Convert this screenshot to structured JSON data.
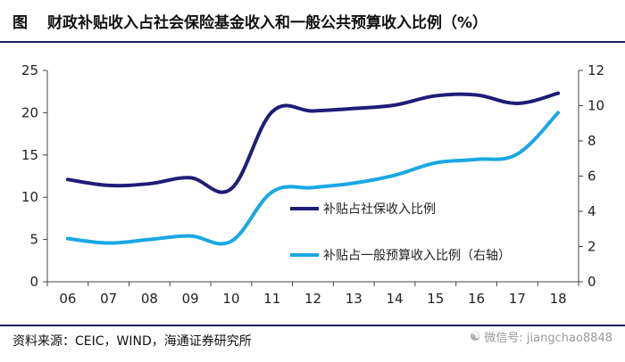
{
  "header": {
    "figure_label": "图",
    "title": "财政补贴收入占社会保险基金收入和一般公共预算收入比例（%）"
  },
  "footer": {
    "source": "资料来源：CEIC，WIND，海通证券研究所",
    "watermark": "微信号: jiangchao8848",
    "watermark_icon": "wechat-icon"
  },
  "chart_data": {
    "type": "line",
    "title": "财政补贴收入占社会保险基金收入和一般公共预算收入比例（%）",
    "categories": [
      "06",
      "07",
      "08",
      "09",
      "10",
      "11",
      "12",
      "13",
      "14",
      "15",
      "16",
      "17",
      "18"
    ],
    "y_left": {
      "min": 0,
      "max": 25,
      "ticks": [
        0,
        5,
        10,
        15,
        20,
        25
      ]
    },
    "y_right": {
      "min": 0,
      "max": 12,
      "ticks": [
        0,
        2,
        4,
        6,
        8,
        10,
        12
      ]
    },
    "series": [
      {
        "name": "补贴占社保收入比例",
        "axis": "left",
        "color": "#1f1d77",
        "values": [
          12.1,
          11.4,
          11.6,
          12.3,
          11.0,
          20.1,
          20.2,
          20.5,
          20.9,
          22.0,
          22.1,
          21.1,
          22.3
        ]
      },
      {
        "name": "补贴占一般预算收入比例（右轴）",
        "axis": "right",
        "color": "#1aa7e4",
        "values": [
          2.45,
          2.2,
          2.4,
          2.6,
          2.3,
          5.1,
          5.35,
          5.6,
          6.05,
          6.75,
          6.95,
          7.25,
          9.6
        ]
      }
    ],
    "legend_position": "center-right",
    "grid": false
  }
}
